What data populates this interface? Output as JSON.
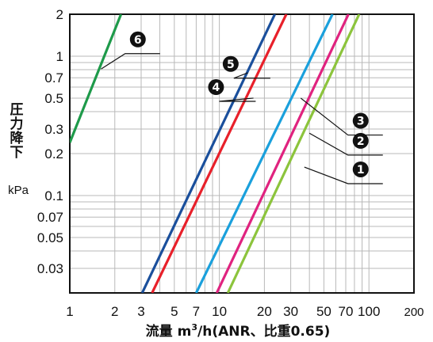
{
  "chart_data": {
    "type": "line",
    "xlabel_main": "流量",
    "xlabel_unit_pre": "m",
    "xlabel_unit_sup": "3",
    "xlabel_unit_post": "/h(ANR、比重0.65)",
    "ylabel": [
      "圧",
      "力",
      "降",
      "下"
    ],
    "ylabel_unit": "kPa",
    "xscale": "log",
    "yscale": "log",
    "xlim": [
      1,
      200
    ],
    "ylim": [
      0.02,
      2
    ],
    "grid": true,
    "legend": "none",
    "x_ticks": [
      {
        "value": 1,
        "label": "1"
      },
      {
        "value": 2,
        "label": "2"
      },
      {
        "value": 3,
        "label": "3"
      },
      {
        "value": 5,
        "label": "5"
      },
      {
        "value": 7,
        "label": "7"
      },
      {
        "value": 10,
        "label": "10"
      },
      {
        "value": 20,
        "label": "20"
      },
      {
        "value": 30,
        "label": "30"
      },
      {
        "value": 50,
        "label": "50"
      },
      {
        "value": 70,
        "label": "70"
      },
      {
        "value": 100,
        "label": "100"
      },
      {
        "value": 200,
        "label": "200"
      }
    ],
    "y_ticks": [
      {
        "value": 2,
        "label": "2"
      },
      {
        "value": 1,
        "label": "1"
      },
      {
        "value": 0.7,
        "label": "0.7"
      },
      {
        "value": 0.5,
        "label": "0.5"
      },
      {
        "value": 0.3,
        "label": "0.3"
      },
      {
        "value": 0.2,
        "label": "0.2"
      },
      {
        "value": 0.1,
        "label": "0.1"
      },
      {
        "value": 0.07,
        "label": "0.07"
      },
      {
        "value": 0.05,
        "label": "0.05"
      },
      {
        "value": 0.03,
        "label": "0.03"
      }
    ],
    "x_grid": [
      1,
      2,
      3,
      4,
      5,
      6,
      7,
      8,
      9,
      10,
      20,
      30,
      40,
      50,
      60,
      70,
      80,
      90,
      100,
      200
    ],
    "y_grid": [
      0.02,
      0.03,
      0.04,
      0.05,
      0.06,
      0.07,
      0.08,
      0.09,
      0.1,
      0.2,
      0.3,
      0.4,
      0.5,
      0.6,
      0.7,
      0.8,
      0.9,
      1,
      2
    ],
    "series": [
      {
        "marker": "6",
        "color": "#1e9a4a",
        "points": [
          [
            1.0,
            0.24
          ],
          [
            2.2,
            2.0
          ]
        ]
      },
      {
        "marker": "5",
        "color": "#1a4f9c",
        "points": [
          [
            3.05,
            0.02
          ],
          [
            23.5,
            2.0
          ]
        ]
      },
      {
        "marker": "4",
        "color": "#e8202a",
        "points": [
          [
            3.55,
            0.02
          ],
          [
            28.0,
            2.0
          ]
        ]
      },
      {
        "marker": "3",
        "color": "#1aa0dc",
        "points": [
          [
            7.0,
            0.02
          ],
          [
            57.0,
            2.0
          ]
        ]
      },
      {
        "marker": "2",
        "color": "#e0237f",
        "points": [
          [
            9.6,
            0.02
          ],
          [
            73.0,
            2.0
          ]
        ]
      },
      {
        "marker": "1",
        "color": "#8cc43c",
        "points": [
          [
            11.4,
            0.02
          ],
          [
            86.0,
            2.0
          ]
        ]
      }
    ],
    "markers": [
      {
        "marker": "6",
        "text": "6",
        "anchor": [
          1.62,
          0.81
        ],
        "label_at": [
          2.85,
          1.32
        ]
      },
      {
        "marker": "5",
        "text": "5",
        "anchor": [
          15.5,
          0.76
        ],
        "label_at": [
          11.9,
          0.88
        ]
      },
      {
        "marker": "4",
        "text": "4",
        "anchor": [
          16.9,
          0.5
        ],
        "label_at": [
          9.5,
          0.6
        ]
      },
      {
        "marker": "3",
        "text": "3",
        "anchor": [
          35.0,
          0.5
        ],
        "label_at": [
          88.0,
          0.344
        ]
      },
      {
        "marker": "2",
        "text": "2",
        "anchor": [
          40.0,
          0.28
        ],
        "label_at": [
          88.0,
          0.247
        ]
      },
      {
        "marker": "1",
        "text": "1",
        "anchor": [
          37.0,
          0.16
        ],
        "label_at": [
          88.0,
          0.154
        ]
      }
    ]
  }
}
